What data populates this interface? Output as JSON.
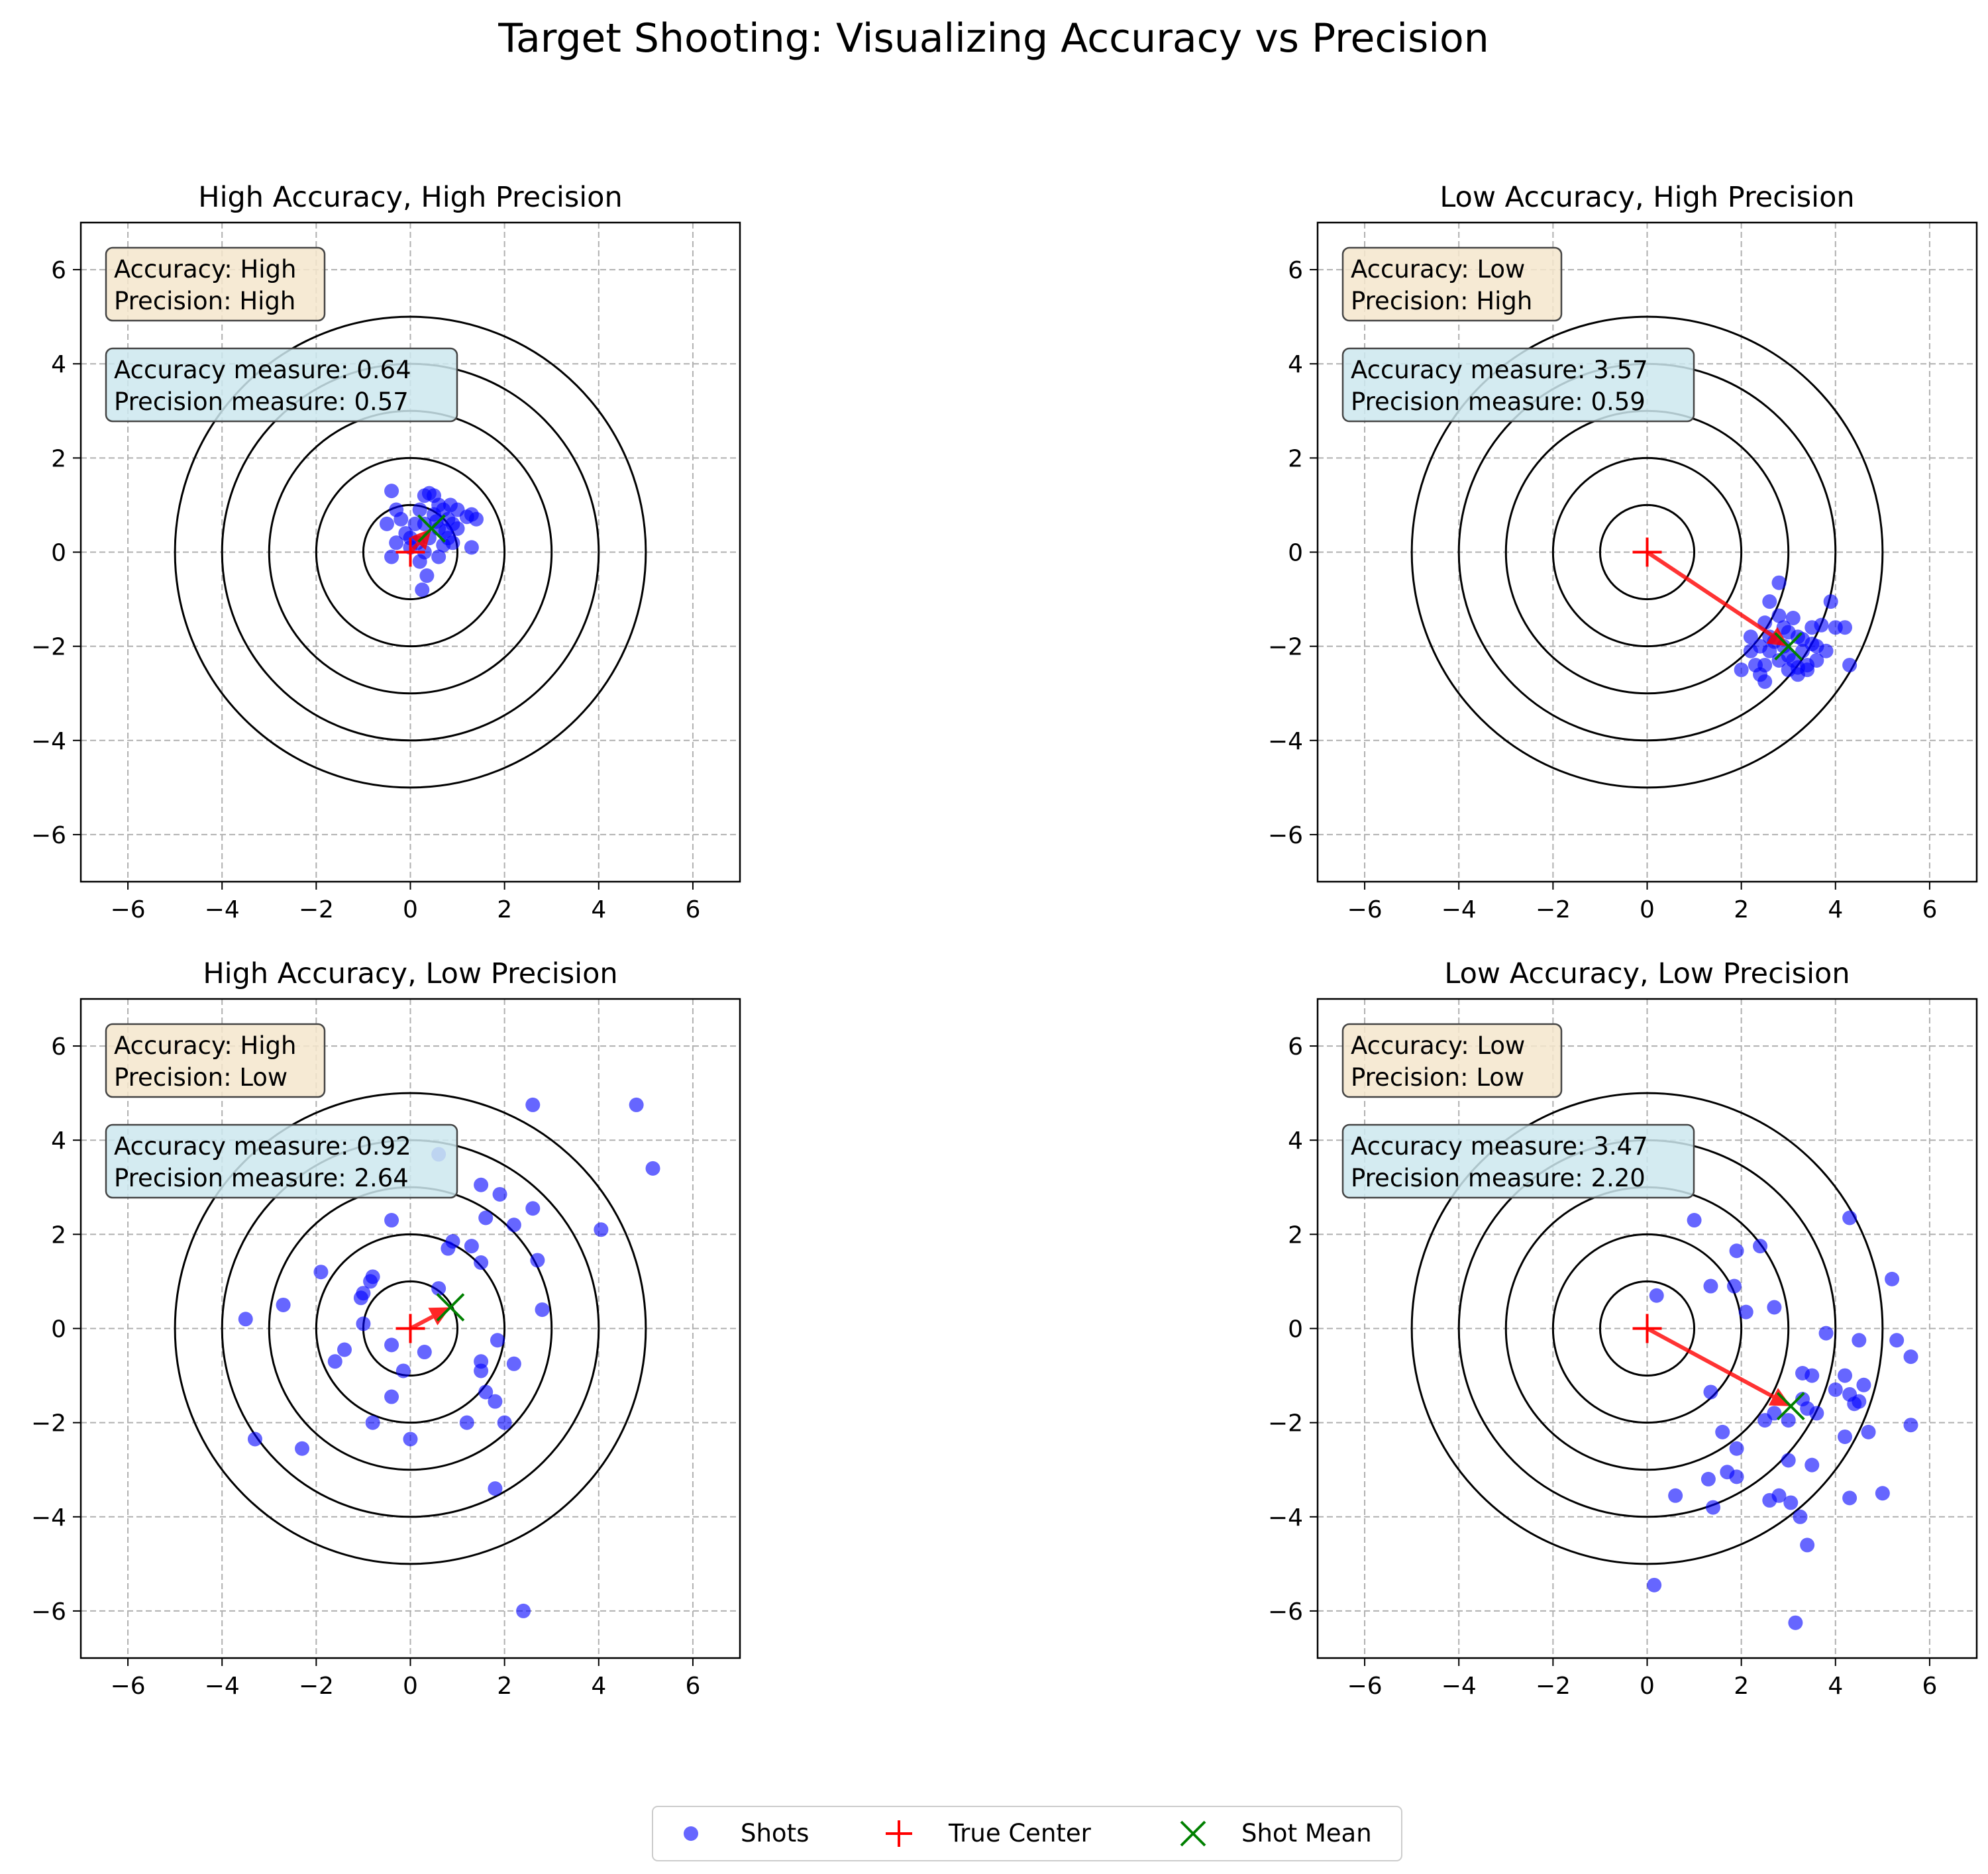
{
  "title": "Target Shooting: Visualizing Accuracy vs Precision",
  "chart_data": [
    {
      "type": "scatter",
      "title": "High Accuracy, High Precision",
      "xlim": [
        -7,
        7
      ],
      "ylim": [
        -7,
        7
      ],
      "xticks": [
        "−6",
        "−4",
        "−2",
        "0",
        "2",
        "4",
        "6"
      ],
      "yticks": [
        "−6",
        "−4",
        "−2",
        "0",
        "2",
        "4",
        "6"
      ],
      "grid": true,
      "rings": [
        1,
        2,
        3,
        4,
        5
      ],
      "true_center": [
        0,
        0
      ],
      "shot_mean": [
        0.45,
        0.5
      ],
      "label_box": [
        "Accuracy: High",
        "Precision: High"
      ],
      "measure_box": [
        "Accuracy measure: 0.64",
        "Precision measure: 0.57"
      ],
      "shots": [
        [
          -0.4,
          1.3
        ],
        [
          -0.3,
          0.9
        ],
        [
          -0.5,
          0.6
        ],
        [
          -0.3,
          0.2
        ],
        [
          -0.1,
          0.4
        ],
        [
          -0.2,
          0.7
        ],
        [
          0.0,
          0.3
        ],
        [
          0.1,
          0.6
        ],
        [
          0.2,
          0.9
        ],
        [
          0.3,
          1.2
        ],
        [
          0.4,
          1.25
        ],
        [
          0.5,
          1.2
        ],
        [
          0.6,
          1.0
        ],
        [
          0.7,
          0.9
        ],
        [
          0.8,
          0.7
        ],
        [
          0.6,
          0.5
        ],
        [
          0.4,
          0.3
        ],
        [
          0.3,
          0.6
        ],
        [
          0.5,
          0.8
        ],
        [
          0.8,
          0.3
        ],
        [
          0.9,
          0.6
        ],
        [
          1.2,
          0.75
        ],
        [
          1.3,
          0.8
        ],
        [
          1.4,
          0.7
        ],
        [
          1.3,
          0.1
        ],
        [
          1.0,
          0.5
        ],
        [
          0.9,
          0.2
        ],
        [
          0.7,
          0.15
        ],
        [
          0.6,
          -0.1
        ],
        [
          0.2,
          -0.2
        ],
        [
          0.35,
          -0.5
        ],
        [
          0.25,
          -0.8
        ],
        [
          -0.4,
          -0.1
        ],
        [
          0.0,
          0.1
        ],
        [
          0.15,
          0.2
        ],
        [
          1.0,
          0.9
        ],
        [
          0.55,
          0.65
        ],
        [
          0.75,
          0.45
        ],
        [
          0.3,
          0.0
        ],
        [
          0.85,
          1.0
        ]
      ]
    },
    {
      "type": "scatter",
      "title": "Low Accuracy, High Precision",
      "xlim": [
        -7,
        7
      ],
      "ylim": [
        -7,
        7
      ],
      "xticks": [
        "−6",
        "−4",
        "−2",
        "0",
        "2",
        "4",
        "6"
      ],
      "yticks": [
        "−6",
        "−4",
        "−2",
        "0",
        "2",
        "4",
        "6"
      ],
      "grid": true,
      "rings": [
        1,
        2,
        3,
        4,
        5
      ],
      "true_center": [
        0,
        0
      ],
      "shot_mean": [
        3.0,
        -2.0
      ],
      "label_box": [
        "Accuracy: Low",
        "Precision: High"
      ],
      "measure_box": [
        "Accuracy measure: 3.57",
        "Precision measure: 0.59"
      ],
      "shots": [
        [
          2.8,
          -0.65
        ],
        [
          2.6,
          -1.05
        ],
        [
          2.5,
          -1.5
        ],
        [
          2.2,
          -1.8
        ],
        [
          2.0,
          -2.5
        ],
        [
          2.3,
          -2.4
        ],
        [
          2.5,
          -2.75
        ],
        [
          2.8,
          -2.3
        ],
        [
          3.0,
          -2.5
        ],
        [
          3.2,
          -2.6
        ],
        [
          3.4,
          -2.4
        ],
        [
          3.6,
          -2.3
        ],
        [
          3.8,
          -2.1
        ],
        [
          4.0,
          -1.6
        ],
        [
          3.9,
          -1.05
        ],
        [
          4.3,
          -2.4
        ],
        [
          3.5,
          -1.6
        ],
        [
          3.7,
          -1.55
        ],
        [
          3.1,
          -1.4
        ],
        [
          2.9,
          -1.6
        ],
        [
          3.2,
          -1.8
        ],
        [
          3.3,
          -2.1
        ],
        [
          2.7,
          -1.9
        ],
        [
          2.4,
          -2.0
        ],
        [
          2.5,
          -2.4
        ],
        [
          3.5,
          -1.95
        ],
        [
          3.6,
          -2.0
        ],
        [
          3.0,
          -2.2
        ],
        [
          2.6,
          -2.1
        ],
        [
          3.1,
          -2.3
        ],
        [
          2.8,
          -1.35
        ],
        [
          3.4,
          -2.5
        ],
        [
          2.2,
          -2.1
        ],
        [
          4.2,
          -1.6
        ],
        [
          3.3,
          -1.85
        ],
        [
          2.9,
          -2.0
        ],
        [
          3.0,
          -1.7
        ],
        [
          2.6,
          -1.8
        ],
        [
          3.2,
          -2.45
        ],
        [
          2.4,
          -2.6
        ]
      ]
    },
    {
      "type": "scatter",
      "title": "High Accuracy, Low Precision",
      "xlim": [
        -7,
        7
      ],
      "ylim": [
        -7,
        7
      ],
      "xticks": [
        "−6",
        "−4",
        "−2",
        "0",
        "2",
        "4",
        "6"
      ],
      "yticks": [
        "−6",
        "−4",
        "−2",
        "0",
        "2",
        "4",
        "6"
      ],
      "grid": true,
      "rings": [
        1,
        2,
        3,
        4,
        5
      ],
      "true_center": [
        0,
        0
      ],
      "shot_mean": [
        0.85,
        0.45
      ],
      "label_box": [
        "Accuracy: High",
        "Precision: Low"
      ],
      "measure_box": [
        "Accuracy measure: 0.92",
        "Precision measure: 2.64"
      ],
      "shots": [
        [
          2.6,
          4.75
        ],
        [
          4.8,
          4.75
        ],
        [
          5.15,
          3.4
        ],
        [
          0.6,
          3.7
        ],
        [
          1.5,
          3.05
        ],
        [
          1.9,
          2.85
        ],
        [
          2.6,
          2.55
        ],
        [
          1.6,
          2.35
        ],
        [
          2.2,
          2.2
        ],
        [
          4.05,
          2.1
        ],
        [
          -0.4,
          2.3
        ],
        [
          0.9,
          1.85
        ],
        [
          1.3,
          1.75
        ],
        [
          0.8,
          1.7
        ],
        [
          1.5,
          1.4
        ],
        [
          2.7,
          1.45
        ],
        [
          -1.9,
          1.2
        ],
        [
          -0.8,
          1.1
        ],
        [
          -0.85,
          1.0
        ],
        [
          -1.0,
          0.75
        ],
        [
          -1.05,
          0.65
        ],
        [
          -2.7,
          0.5
        ],
        [
          0.6,
          0.85
        ],
        [
          2.8,
          0.4
        ],
        [
          -3.5,
          0.2
        ],
        [
          -1.0,
          0.1
        ],
        [
          -1.4,
          -0.45
        ],
        [
          -0.4,
          -0.35
        ],
        [
          0.3,
          -0.5
        ],
        [
          1.85,
          -0.25
        ],
        [
          -1.6,
          -0.7
        ],
        [
          1.5,
          -0.7
        ],
        [
          2.2,
          -0.75
        ],
        [
          1.5,
          -0.9
        ],
        [
          -0.15,
          -0.9
        ],
        [
          1.6,
          -1.35
        ],
        [
          1.8,
          -1.55
        ],
        [
          -0.4,
          -1.45
        ],
        [
          1.2,
          -2.0
        ],
        [
          2.0,
          -2.0
        ],
        [
          -0.8,
          -2.0
        ],
        [
          -3.3,
          -2.35
        ],
        [
          0.0,
          -2.35
        ],
        [
          -2.3,
          -2.55
        ],
        [
          1.8,
          -3.4
        ],
        [
          2.4,
          -6.0
        ]
      ]
    },
    {
      "type": "scatter",
      "title": "Low Accuracy, Low Precision",
      "xlim": [
        -7,
        7
      ],
      "ylim": [
        -7,
        7
      ],
      "xticks": [
        "−6",
        "−4",
        "−2",
        "0",
        "2",
        "4",
        "6"
      ],
      "yticks": [
        "−6",
        "−4",
        "−2",
        "0",
        "2",
        "4",
        "6"
      ],
      "grid": true,
      "rings": [
        1,
        2,
        3,
        4,
        5
      ],
      "true_center": [
        0,
        0
      ],
      "shot_mean": [
        3.05,
        -1.65
      ],
      "label_box": [
        "Accuracy: Low",
        "Precision: Low"
      ],
      "measure_box": [
        "Accuracy measure: 3.47",
        "Precision measure: 2.20"
      ],
      "shots": [
        [
          4.3,
          2.35
        ],
        [
          1.0,
          2.3
        ],
        [
          2.4,
          1.75
        ],
        [
          1.9,
          1.65
        ],
        [
          5.2,
          1.05
        ],
        [
          1.35,
          0.9
        ],
        [
          1.85,
          0.9
        ],
        [
          0.2,
          0.7
        ],
        [
          2.1,
          0.35
        ],
        [
          2.7,
          0.45
        ],
        [
          3.8,
          -0.1
        ],
        [
          5.3,
          -0.25
        ],
        [
          4.5,
          -0.25
        ],
        [
          5.6,
          -0.6
        ],
        [
          3.3,
          -0.95
        ],
        [
          4.2,
          -1.0
        ],
        [
          3.5,
          -1.0
        ],
        [
          4.6,
          -1.2
        ],
        [
          4.3,
          -1.4
        ],
        [
          1.35,
          -1.35
        ],
        [
          3.3,
          -1.5
        ],
        [
          4.0,
          -1.3
        ],
        [
          4.5,
          -1.55
        ],
        [
          4.4,
          -1.6
        ],
        [
          3.4,
          -1.7
        ],
        [
          2.5,
          -1.95
        ],
        [
          3.0,
          -1.95
        ],
        [
          2.7,
          -1.8
        ],
        [
          3.6,
          -1.8
        ],
        [
          1.6,
          -2.2
        ],
        [
          4.2,
          -2.3
        ],
        [
          4.7,
          -2.2
        ],
        [
          5.6,
          -2.05
        ],
        [
          1.9,
          -2.55
        ],
        [
          3.0,
          -2.8
        ],
        [
          3.5,
          -2.9
        ],
        [
          1.7,
          -3.05
        ],
        [
          1.9,
          -3.15
        ],
        [
          1.3,
          -3.2
        ],
        [
          0.6,
          -3.55
        ],
        [
          2.8,
          -3.55
        ],
        [
          2.6,
          -3.65
        ],
        [
          3.05,
          -3.7
        ],
        [
          4.3,
          -3.6
        ],
        [
          5.0,
          -3.5
        ],
        [
          1.4,
          -3.8
        ],
        [
          3.25,
          -4.0
        ],
        [
          3.4,
          -4.6
        ],
        [
          0.15,
          -5.45
        ],
        [
          3.15,
          -6.25
        ]
      ]
    }
  ],
  "legend": {
    "placement": "bottom-center",
    "items": [
      {
        "label": "Shots",
        "marker": "circle",
        "color": "#0000ff"
      },
      {
        "label": "True Center",
        "marker": "plus",
        "color": "#ff0000"
      },
      {
        "label": "Shot Mean",
        "marker": "x",
        "color": "#008000"
      }
    ]
  },
  "colors": {
    "shots": "#0000ff",
    "true_center": "#ff0000",
    "shot_mean": "#008000",
    "arrow": "#ff0000",
    "label_box_fill": "#f5e6cc",
    "measure_box_fill": "#cde8ef",
    "grid": "#b0b0b0"
  }
}
